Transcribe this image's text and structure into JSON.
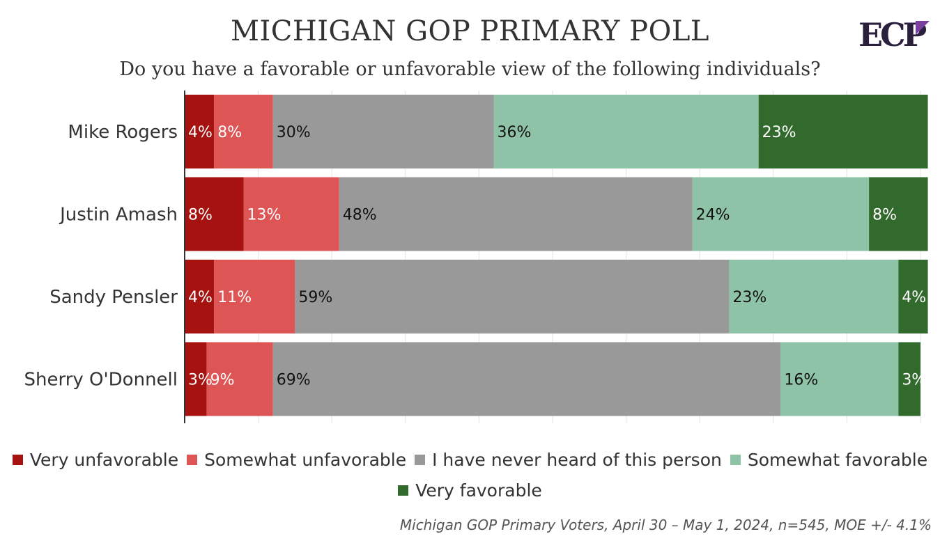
{
  "header": {
    "title": "MICHIGAN GOP PRIMARY POLL",
    "subtitle": "Do you have a favorable or unfavorable view of the following individuals?",
    "logo_text": "ECP"
  },
  "footer": {
    "source": "Michigan GOP Primary Voters, April 30 – May 1, 2024, n=545, MOE +/- 4.1%"
  },
  "chart_data": {
    "type": "bar",
    "orientation": "horizontal",
    "stacked": true,
    "categories": [
      "Mike Rogers",
      "Justin Amash",
      "Sandy Pensler",
      "Sherry O'Donnell"
    ],
    "xlim": [
      0,
      100
    ],
    "grid": true,
    "legend_position": "bottom",
    "series": [
      {
        "name": "Very unfavorable",
        "color": "#a5120f",
        "values": [
          4,
          8,
          4,
          3
        ],
        "label_color": "#ffffff"
      },
      {
        "name": "Somewhat unfavorable",
        "color": "#de5556",
        "values": [
          8,
          13,
          11,
          9
        ],
        "label_color": "#ffffff"
      },
      {
        "name": "I have never heard of this person",
        "color": "#999999",
        "values": [
          30,
          48,
          59,
          69
        ],
        "label_color": "#111111"
      },
      {
        "name": "Somewhat favorable",
        "color": "#8fc3a8",
        "values": [
          36,
          24,
          23,
          16
        ],
        "label_color": "#111111"
      },
      {
        "name": "Very favorable",
        "color": "#326a2d",
        "values": [
          23,
          8,
          4,
          3
        ],
        "label_color": "#ffffff"
      }
    ]
  }
}
